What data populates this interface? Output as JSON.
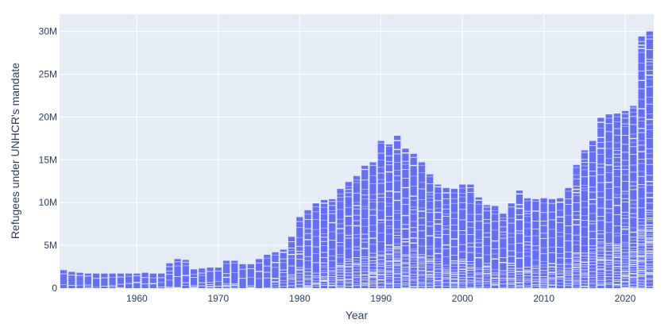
{
  "chart_data": {
    "type": "bar",
    "stacked": true,
    "xlabel": "Year",
    "ylabel": "Refugees under UNHCR's mandate",
    "xlim": [
      1950.5,
      2023.5
    ],
    "ylim": [
      0,
      32000000
    ],
    "x_ticks": [
      1960,
      1970,
      1980,
      1990,
      2000,
      2010,
      2020
    ],
    "x_tick_labels": [
      "1960",
      "1970",
      "1980",
      "1990",
      "2000",
      "2010",
      "2020"
    ],
    "y_ticks": [
      0,
      5000000,
      10000000,
      15000000,
      20000000,
      25000000,
      30000000
    ],
    "y_tick_labels": [
      "0",
      "5M",
      "10M",
      "15M",
      "20M",
      "25M",
      "30M"
    ],
    "grid": true,
    "colors": {
      "bar": "#636efa",
      "plot_bg": "#e5ecf6",
      "grid": "#ffffff",
      "text": "#2a3f5f"
    },
    "x": [
      1951,
      1952,
      1953,
      1954,
      1955,
      1956,
      1957,
      1958,
      1959,
      1960,
      1961,
      1962,
      1963,
      1964,
      1965,
      1966,
      1967,
      1968,
      1969,
      1970,
      1971,
      1972,
      1973,
      1974,
      1975,
      1976,
      1977,
      1978,
      1979,
      1980,
      1981,
      1982,
      1983,
      1984,
      1985,
      1986,
      1987,
      1988,
      1989,
      1990,
      1991,
      1992,
      1993,
      1994,
      1995,
      1996,
      1997,
      1998,
      1999,
      2000,
      2001,
      2002,
      2003,
      2004,
      2005,
      2006,
      2007,
      2008,
      2009,
      2010,
      2011,
      2012,
      2013,
      2014,
      2015,
      2016,
      2017,
      2018,
      2019,
      2020,
      2021,
      2022,
      2023
    ],
    "values": [
      2100000,
      1900000,
      1800000,
      1700000,
      1700000,
      1700000,
      1700000,
      1700000,
      1700000,
      1700000,
      1800000,
      1700000,
      1700000,
      2900000,
      3400000,
      3300000,
      2200000,
      2300000,
      2400000,
      2400000,
      3200000,
      3200000,
      2800000,
      2800000,
      3400000,
      3900000,
      4200000,
      4500000,
      6000000,
      8300000,
      9100000,
      9900000,
      10300000,
      10400000,
      11600000,
      12400000,
      13100000,
      14300000,
      14700000,
      17200000,
      16800000,
      17800000,
      16300000,
      15700000,
      14700000,
      13300000,
      12100000,
      11700000,
      11600000,
      12100000,
      12100000,
      10600000,
      9700000,
      9600000,
      8700000,
      9900000,
      11400000,
      10500000,
      10400000,
      10500000,
      10400000,
      10500000,
      11700000,
      14400000,
      16100000,
      17200000,
      19900000,
      20300000,
      20400000,
      20700000,
      21300000,
      29400000,
      30000000
    ]
  }
}
